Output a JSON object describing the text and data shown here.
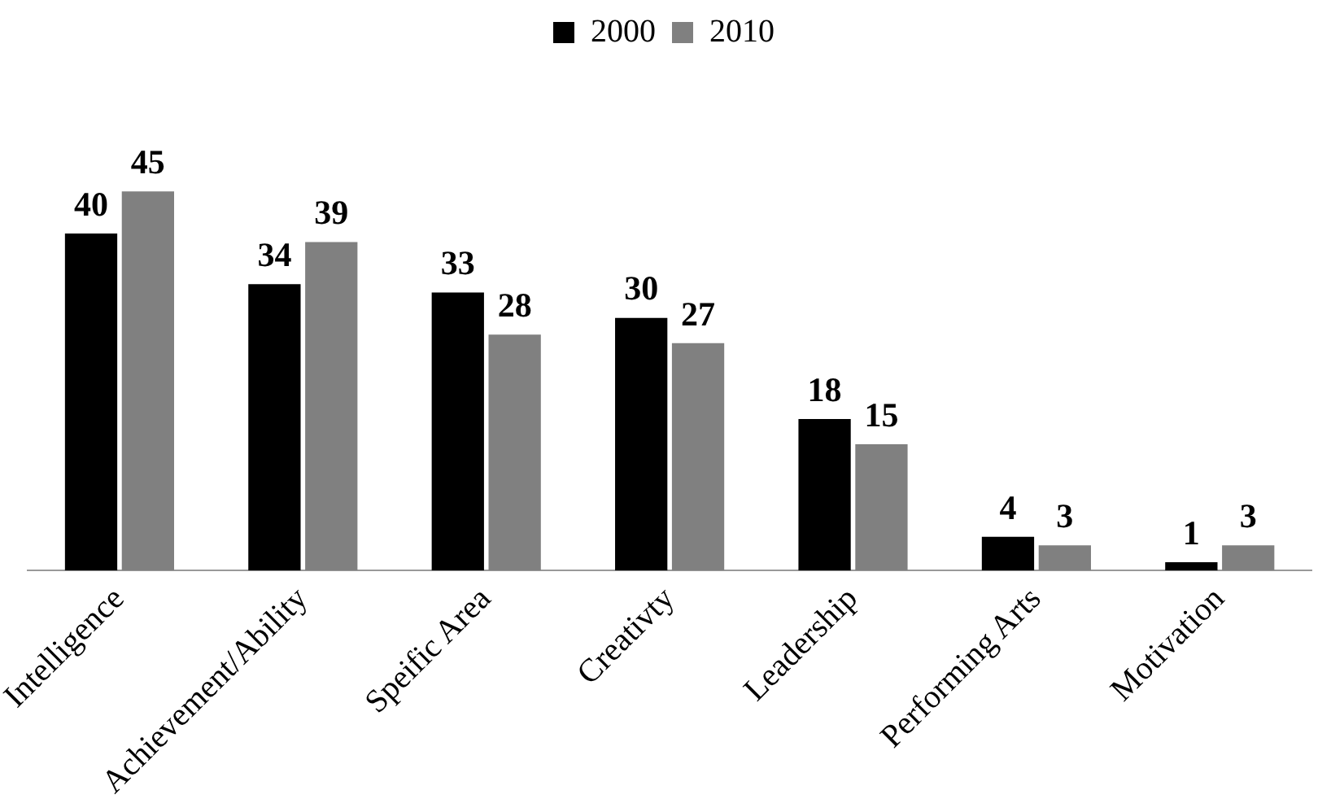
{
  "chart_data": {
    "type": "bar",
    "categories": [
      "Intelligence",
      "Achievement/Ability",
      "Speific Area",
      "Creativty",
      "Leadership",
      "Performing Arts",
      "Motivation"
    ],
    "series": [
      {
        "name": "2000",
        "color": "#000000",
        "values": [
          40,
          34,
          33,
          30,
          18,
          4,
          1
        ]
      },
      {
        "name": "2010",
        "color": "#808080",
        "values": [
          45,
          39,
          28,
          27,
          15,
          3,
          3
        ]
      }
    ],
    "data_labels": true,
    "legend": "top",
    "grid": false
  }
}
